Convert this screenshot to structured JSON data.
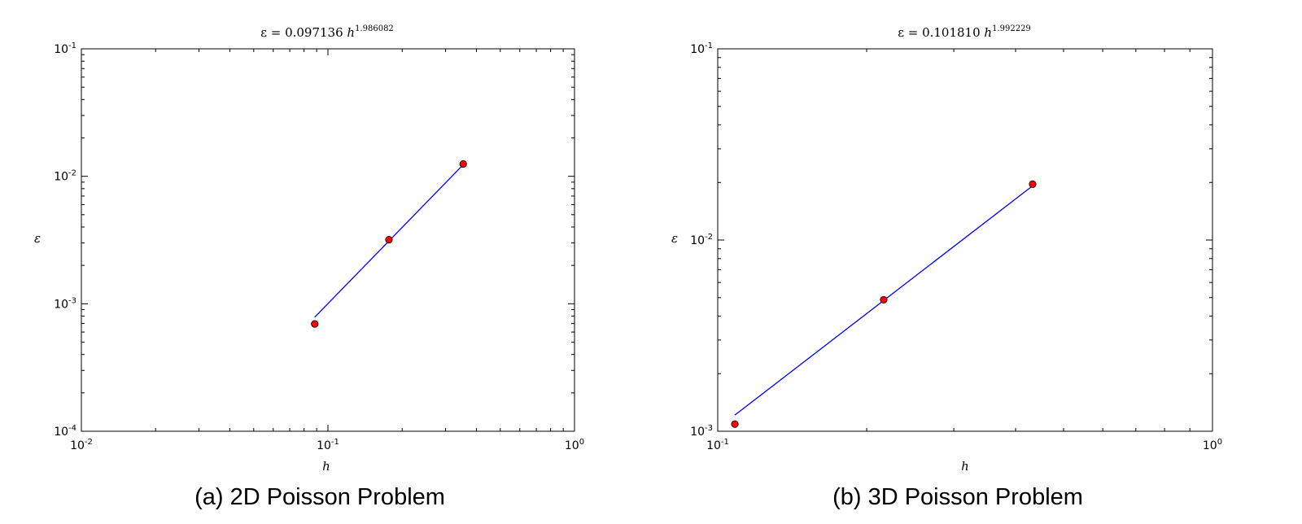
{
  "chart_data": [
    {
      "type": "scatter",
      "title": {
        "prefix": "ε = 0.097136 ",
        "var": "h",
        "exponent": "1.986082"
      },
      "caption": "(a) 2D Poisson Problem",
      "xlabel": "h",
      "ylabel": "ε",
      "xscale": "log",
      "yscale": "log",
      "xlim": [
        0.01,
        1
      ],
      "ylim": [
        0.0001,
        0.1
      ],
      "xticks": [
        {
          "value": 0.01,
          "base": "10",
          "exp": "-2"
        },
        {
          "value": 0.1,
          "base": "10",
          "exp": "-1"
        },
        {
          "value": 1,
          "base": "10",
          "exp": "0"
        }
      ],
      "yticks": [
        {
          "value": 0.0001,
          "base": "10",
          "exp": "-4"
        },
        {
          "value": 0.001,
          "base": "10",
          "exp": "-3"
        },
        {
          "value": 0.01,
          "base": "10",
          "exp": "-2"
        },
        {
          "value": 0.1,
          "base": "10",
          "exp": "-1"
        }
      ],
      "points": [
        {
          "x": 0.0884,
          "y": 0.000695
        },
        {
          "x": 0.1768,
          "y": 0.00318
        },
        {
          "x": 0.3536,
          "y": 0.0125
        }
      ],
      "fit": {
        "coef": 0.097136,
        "exp": 1.986082
      },
      "grid": false,
      "colors": {
        "line": "#0000ff",
        "marker": "#ff0000",
        "marker_edge": "#000000"
      }
    },
    {
      "type": "scatter",
      "title": {
        "prefix": "ε = 0.101810 ",
        "var": "h",
        "exponent": "1.992229"
      },
      "caption": "(b) 3D Poisson Problem",
      "xlabel": "h",
      "ylabel": "ε",
      "xscale": "log",
      "yscale": "log",
      "xlim": [
        0.1,
        1
      ],
      "ylim": [
        0.001,
        0.1
      ],
      "xticks": [
        {
          "value": 0.1,
          "base": "10",
          "exp": "-1"
        },
        {
          "value": 1,
          "base": "10",
          "exp": "0"
        }
      ],
      "yticks": [
        {
          "value": 0.001,
          "base": "10",
          "exp": "-3"
        },
        {
          "value": 0.01,
          "base": "10",
          "exp": "-2"
        },
        {
          "value": 0.1,
          "base": "10",
          "exp": "-1"
        }
      ],
      "points": [
        {
          "x": 0.1083,
          "y": 0.00109
        },
        {
          "x": 0.2165,
          "y": 0.00487
        },
        {
          "x": 0.433,
          "y": 0.0196
        }
      ],
      "fit": {
        "coef": 0.10181,
        "exp": 1.992229
      },
      "grid": false,
      "colors": {
        "line": "#0000ff",
        "marker": "#ff0000",
        "marker_edge": "#000000"
      }
    }
  ]
}
